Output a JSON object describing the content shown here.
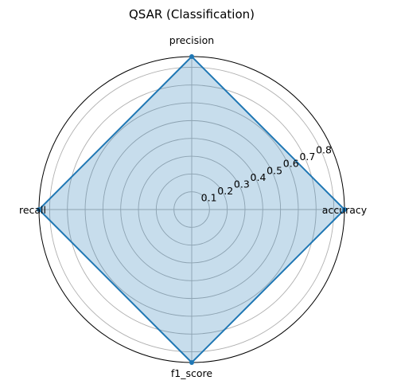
{
  "chart_data": {
    "type": "radar",
    "title": "QSAR (Classification)",
    "axes": [
      "accuracy",
      "precision",
      "recall",
      "f1_score"
    ],
    "series": [
      {
        "values": [
          0.86,
          0.86,
          0.86,
          0.86
        ]
      }
    ],
    "r_ticks": [
      0.1,
      0.2,
      0.3,
      0.4,
      0.5,
      0.6,
      0.7,
      0.8
    ],
    "r_tick_labels": [
      "0.1",
      "0.2",
      "0.3",
      "0.4",
      "0.5",
      "0.6",
      "0.7",
      "0.8"
    ],
    "rlim": [
      0,
      0.86
    ],
    "grid": true,
    "colors": {
      "line": "#1f77b4",
      "fill": "#1f77b4",
      "grid": "#b0b0b0",
      "frame": "#000000"
    }
  }
}
